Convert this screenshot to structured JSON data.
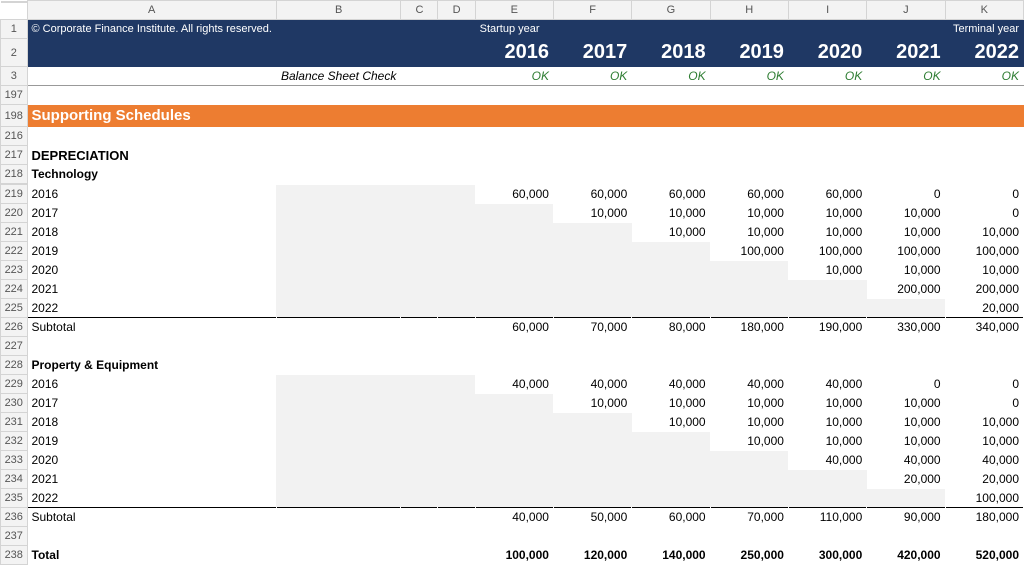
{
  "copyright": "© Corporate Finance Institute. All rights reserved.",
  "startup_label": "Startup year",
  "terminal_label": "Terminal year",
  "years": [
    "2016",
    "2017",
    "2018",
    "2019",
    "2020",
    "2021",
    "2022"
  ],
  "check_label": "Balance Sheet Check",
  "check_vals": [
    "OK",
    "OK",
    "OK",
    "OK",
    "OK",
    "OK",
    "OK"
  ],
  "banner": "Supporting Schedules",
  "dep_title": "DEPRECIATION",
  "tech_title": "Technology",
  "tech_rows": [
    {
      "label": "2016",
      "vals": [
        "60,000",
        "60,000",
        "60,000",
        "60,000",
        "60,000",
        "0",
        "0"
      ],
      "shade_to": 0
    },
    {
      "label": "2017",
      "vals": [
        "",
        "10,000",
        "10,000",
        "10,000",
        "10,000",
        "10,000",
        "0"
      ],
      "shade_to": 1
    },
    {
      "label": "2018",
      "vals": [
        "",
        "",
        "10,000",
        "10,000",
        "10,000",
        "10,000",
        "10,000"
      ],
      "shade_to": 2
    },
    {
      "label": "2019",
      "vals": [
        "",
        "",
        "",
        "100,000",
        "100,000",
        "100,000",
        "100,000"
      ],
      "shade_to": 3
    },
    {
      "label": "2020",
      "vals": [
        "",
        "",
        "",
        "",
        "10,000",
        "10,000",
        "10,000"
      ],
      "shade_to": 4
    },
    {
      "label": "2021",
      "vals": [
        "",
        "",
        "",
        "",
        "",
        "200,000",
        "200,000"
      ],
      "shade_to": 5
    },
    {
      "label": "2022",
      "vals": [
        "",
        "",
        "",
        "",
        "",
        "",
        "20,000"
      ],
      "shade_to": 6
    }
  ],
  "tech_subtotal": {
    "label": "Subtotal",
    "vals": [
      "60,000",
      "70,000",
      "80,000",
      "180,000",
      "190,000",
      "330,000",
      "340,000"
    ]
  },
  "pe_title": "Property & Equipment",
  "pe_rows": [
    {
      "label": "2016",
      "vals": [
        "40,000",
        "40,000",
        "40,000",
        "40,000",
        "40,000",
        "0",
        "0"
      ],
      "shade_to": 0
    },
    {
      "label": "2017",
      "vals": [
        "",
        "10,000",
        "10,000",
        "10,000",
        "10,000",
        "10,000",
        "0"
      ],
      "shade_to": 1
    },
    {
      "label": "2018",
      "vals": [
        "",
        "",
        "10,000",
        "10,000",
        "10,000",
        "10,000",
        "10,000"
      ],
      "shade_to": 2
    },
    {
      "label": "2019",
      "vals": [
        "",
        "",
        "",
        "10,000",
        "10,000",
        "10,000",
        "10,000"
      ],
      "shade_to": 3
    },
    {
      "label": "2020",
      "vals": [
        "",
        "",
        "",
        "",
        "40,000",
        "40,000",
        "40,000"
      ],
      "shade_to": 4
    },
    {
      "label": "2021",
      "vals": [
        "",
        "",
        "",
        "",
        "",
        "20,000",
        "20,000"
      ],
      "shade_to": 5
    },
    {
      "label": "2022",
      "vals": [
        "",
        "",
        "",
        "",
        "",
        "",
        "100,000"
      ],
      "shade_to": 6
    }
  ],
  "pe_subtotal": {
    "label": "Subtotal",
    "vals": [
      "40,000",
      "50,000",
      "60,000",
      "70,000",
      "110,000",
      "90,000",
      "180,000"
    ]
  },
  "total": {
    "label": "Total",
    "vals": [
      "100,000",
      "120,000",
      "140,000",
      "250,000",
      "300,000",
      "420,000",
      "520,000"
    ]
  },
  "col_letters": [
    "A",
    "B",
    "C",
    "D",
    "E",
    "F",
    "G",
    "H",
    "I",
    "J",
    "K"
  ],
  "row_nums": [
    "1",
    "2",
    "3",
    "197",
    "198",
    "216",
    "217",
    "218",
    "219",
    "220",
    "221",
    "222",
    "223",
    "224",
    "225",
    "226",
    "227",
    "228",
    "229",
    "230",
    "231",
    "232",
    "233",
    "234",
    "235",
    "236",
    "237",
    "238"
  ],
  "colors": {
    "header": "#1f3864",
    "banner": "#ed7d31",
    "ok": "#2e7d32",
    "shade": "#f2f2f2"
  }
}
